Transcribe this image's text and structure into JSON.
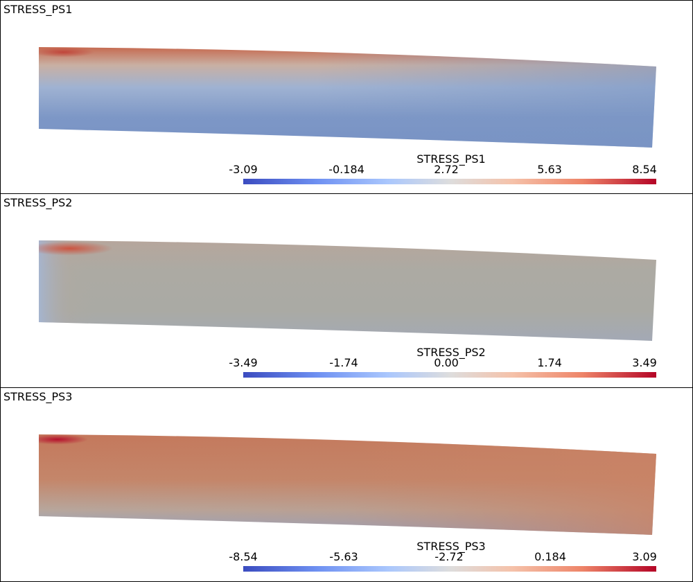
{
  "panels": [
    {
      "title": "STRESS_PS1",
      "colorbar": {
        "title": "STRESS_PS1",
        "ticks": [
          "-3.09",
          "-0.184",
          "2.72",
          "5.63",
          "8.54"
        ]
      },
      "field_colors": {
        "top_edge": "#c8664a",
        "bulk": "#7b96c4",
        "bottom_left": "#3f55b5",
        "top_left": "#c0453a"
      }
    },
    {
      "title": "STRESS_PS2",
      "colorbar": {
        "title": "STRESS_PS2",
        "ticks": [
          "-3.49",
          "-1.74",
          "0.00",
          "1.74",
          "3.49"
        ]
      },
      "field_colors": {
        "top_edge": "#b7a79c",
        "bulk": "#aaaaa3",
        "bottom_left": "#3f55b5",
        "top_left": "#c85544"
      }
    },
    {
      "title": "STRESS_PS3",
      "colorbar": {
        "title": "STRESS_PS3",
        "ticks": [
          "-8.54",
          "-5.63",
          "-2.72",
          "0.184",
          "3.09"
        ]
      },
      "field_colors": {
        "top_edge": "#c4795d",
        "bulk": "#c68466",
        "bottom_left": "#3f55b5",
        "top_left": "#b72d2c"
      }
    }
  ],
  "colormap": [
    "#3b4cc0",
    "#6f91f2",
    "#aac7fd",
    "#dddddd",
    "#f5c2aa",
    "#ee8569",
    "#b40426"
  ]
}
